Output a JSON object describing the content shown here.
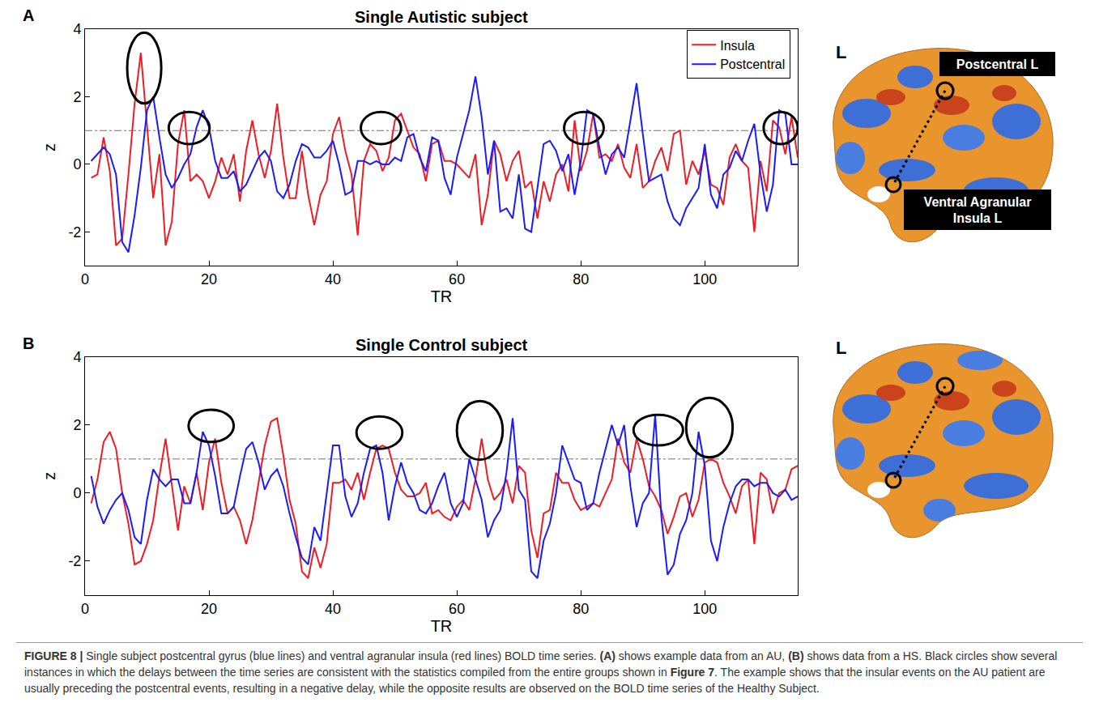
{
  "chart_data": [
    {
      "type": "line",
      "panel": "A",
      "title": "Single Autistic subject",
      "x_label": "TR",
      "y_label": "z",
      "x": [
        1,
        2,
        3,
        4,
        5,
        6,
        7,
        8,
        9,
        10,
        11,
        12,
        13,
        14,
        15,
        16,
        17,
        18,
        19,
        20,
        21,
        22,
        23,
        24,
        25,
        26,
        27,
        28,
        29,
        30,
        31,
        32,
        33,
        34,
        35,
        36,
        37,
        38,
        39,
        40,
        41,
        42,
        43,
        44,
        45,
        46,
        47,
        48,
        49,
        50,
        51,
        52,
        53,
        54,
        55,
        56,
        57,
        58,
        59,
        60,
        61,
        62,
        63,
        64,
        65,
        66,
        67,
        68,
        69,
        70,
        71,
        72,
        73,
        74,
        75,
        76,
        77,
        78,
        79,
        80,
        81,
        82,
        83,
        84,
        85,
        86,
        87,
        88,
        89,
        90,
        91,
        92,
        93,
        94,
        95,
        96,
        97,
        98,
        99,
        100,
        101,
        102,
        103,
        104,
        105,
        106,
        107,
        108,
        109,
        110,
        111,
        112,
        113,
        114,
        115
      ],
      "series": [
        {
          "name": "Insula",
          "color": "#ee1c25",
          "values": [
            -0.4,
            -0.3,
            0.8,
            -0.2,
            -2.4,
            -2.2,
            -0.3,
            1.8,
            3.3,
            1.2,
            -1.0,
            0.3,
            -2.4,
            -1.7,
            0.6,
            1.6,
            -0.5,
            -0.3,
            -0.5,
            -1.0,
            -0.5,
            0.2,
            -0.3,
            0.3,
            -1.1,
            0.4,
            1.3,
            0.3,
            -0.4,
            0.4,
            1.8,
            0.2,
            -1.0,
            -1.0,
            0.4,
            -0.9,
            -1.8,
            -0.9,
            -0.5,
            0.9,
            1.4,
            0.4,
            -0.3,
            -2.1,
            0.1,
            0.6,
            0.4,
            -0.2,
            0.2,
            1.3,
            1.5,
            1.0,
            0.5,
            0.3,
            -0.5,
            0.6,
            0.7,
            0.1,
            0.1,
            0.0,
            -0.2,
            -0.4,
            0.3,
            -1.8,
            -0.9,
            0.7,
            0.3,
            -0.5,
            0.1,
            0.4,
            -0.7,
            -0.5,
            -1.6,
            -0.5,
            -1.1,
            -0.3,
            0.0,
            -0.8,
            1.3,
            -0.2,
            0.4,
            1.5,
            0.2,
            0.3,
            0.1,
            0.6,
            -0.1,
            -0.4,
            0.6,
            -0.7,
            -0.5,
            0.1,
            0.5,
            -0.2,
            0.9,
            1.0,
            -0.6,
            0.1,
            -0.3,
            0.4,
            -0.6,
            -0.7,
            -1.2,
            0.2,
            0.6,
            0.1,
            -0.1,
            -2.0,
            0.1,
            -0.8,
            1.3,
            1.1,
            0.3,
            1.4,
            0.2
          ]
        },
        {
          "name": "Postcentral",
          "color": "#1a1aff",
          "values": [
            0.1,
            0.3,
            0.5,
            0.3,
            -0.3,
            -2.3,
            -2.6,
            -1.5,
            -0.1,
            1.6,
            2.0,
            0.8,
            -0.3,
            -0.7,
            -0.4,
            0.0,
            0.3,
            1.1,
            1.6,
            1.1,
            0.1,
            -0.4,
            -0.4,
            -0.2,
            -0.8,
            -0.6,
            -0.2,
            0.2,
            0.4,
            0.1,
            -0.8,
            -1.0,
            -0.6,
            0.1,
            0.6,
            0.5,
            0.2,
            0.2,
            0.4,
            0.7,
            0.0,
            -0.9,
            -0.8,
            0.1,
            0.1,
            0.0,
            0.1,
            0.0,
            0.0,
            0.2,
            0.1,
            0.8,
            0.9,
            0.2,
            -0.2,
            0.8,
            0.7,
            -0.4,
            -0.9,
            0.2,
            0.9,
            1.6,
            2.6,
            1.4,
            -0.3,
            0.7,
            -1.4,
            -1.3,
            -1.6,
            -0.3,
            -1.9,
            -2.0,
            -0.7,
            0.6,
            0.7,
            0.4,
            -0.2,
            0.3,
            -0.9,
            0.1,
            1.6,
            1.5,
            0.5,
            -0.3,
            0.3,
            0.5,
            0.2,
            1.3,
            2.4,
            0.9,
            -0.5,
            -0.4,
            -0.3,
            -1.1,
            -1.6,
            -1.8,
            -1.3,
            -1.0,
            -0.7,
            0.6,
            -0.9,
            -1.3,
            -0.3,
            -0.1,
            0.4,
            0.1,
            0.7,
            1.2,
            -0.3,
            -1.4,
            -0.6,
            1.6,
            1.5,
            0.0,
            0.0
          ]
        }
      ],
      "xlim": [
        0,
        115
      ],
      "xticks": [
        0,
        20,
        40,
        60,
        80,
        100
      ],
      "ylim": [
        -3,
        4
      ],
      "yticks": [
        -2,
        0,
        2,
        4
      ],
      "grid": false,
      "legend": "upper right",
      "reference_line": {
        "y": 1,
        "line_style": "dashdot"
      },
      "circles": [
        {
          "x": [
            6.8,
            12.3
          ],
          "y": [
            1.8,
            3.9
          ]
        },
        {
          "x": [
            13.5,
            20.1
          ],
          "y": [
            0.6,
            1.55
          ]
        },
        {
          "x": [
            44.5,
            51
          ],
          "y": [
            0.6,
            1.55
          ]
        },
        {
          "x": [
            77.3,
            83.7
          ],
          "y": [
            0.6,
            1.55
          ]
        },
        {
          "x": [
            109.5,
            115
          ],
          "y": [
            0.6,
            1.55
          ]
        }
      ]
    },
    {
      "type": "line",
      "panel": "B",
      "title": "Single Control subject",
      "x_label": "TR",
      "y_label": "z",
      "x": [
        1,
        2,
        3,
        4,
        5,
        6,
        7,
        8,
        9,
        10,
        11,
        12,
        13,
        14,
        15,
        16,
        17,
        18,
        19,
        20,
        21,
        22,
        23,
        24,
        25,
        26,
        27,
        28,
        29,
        30,
        31,
        32,
        33,
        34,
        35,
        36,
        37,
        38,
        39,
        40,
        41,
        42,
        43,
        44,
        45,
        46,
        47,
        48,
        49,
        50,
        51,
        52,
        53,
        54,
        55,
        56,
        57,
        58,
        59,
        60,
        61,
        62,
        63,
        64,
        65,
        66,
        67,
        68,
        69,
        70,
        71,
        72,
        73,
        74,
        75,
        76,
        77,
        78,
        79,
        80,
        81,
        82,
        83,
        84,
        85,
        86,
        87,
        88,
        89,
        90,
        91,
        92,
        93,
        94,
        95,
        96,
        97,
        98,
        99,
        100,
        101,
        102,
        103,
        104,
        105,
        106,
        107,
        108,
        109,
        110,
        111,
        112,
        113,
        114,
        115
      ],
      "series": [
        {
          "name": "Insula",
          "color": "#ee1c25",
          "values": [
            -0.3,
            0.4,
            1.5,
            1.8,
            1.3,
            0.0,
            -0.9,
            -2.1,
            -2.0,
            -1.5,
            -0.8,
            0.5,
            1.6,
            0.2,
            -1.1,
            0.2,
            -0.3,
            0.6,
            -0.5,
            0.9,
            1.6,
            0.3,
            -0.6,
            -0.4,
            -0.8,
            -1.5,
            -0.8,
            0.3,
            1.4,
            2.1,
            2.2,
            1.1,
            -0.2,
            -0.9,
            -2.3,
            -2.5,
            -1.6,
            -2.2,
            -1.5,
            0.3,
            0.3,
            0.4,
            0.1,
            0.6,
            -0.2,
            0.6,
            1.3,
            1.4,
            1.3,
            0.6,
            0.1,
            -0.1,
            -0.1,
            0.0,
            0.3,
            -0.6,
            -0.5,
            -0.7,
            -0.8,
            -0.4,
            -0.2,
            -0.5,
            0.4,
            1.6,
            0.4,
            -0.2,
            0.0,
            0.4,
            -0.3,
            0.8,
            0.6,
            -1.1,
            -1.9,
            -0.6,
            -0.5,
            0.6,
            0.3,
            0.3,
            -0.2,
            -0.5,
            -0.4,
            -0.3,
            -0.4,
            0.0,
            0.4,
            1.6,
            0.9,
            0.6,
            1.6,
            1.0,
            0.2,
            -0.1,
            -0.5,
            -1.2,
            -0.7,
            -0.1,
            0.0,
            -0.7,
            -0.2,
            0.9,
            1.0,
            0.9,
            0.3,
            -0.1,
            -0.6,
            0.2,
            0.4,
            -1.5,
            0.6,
            0.4,
            -0.6,
            0.0,
            0.1,
            0.7,
            0.8
          ]
        },
        {
          "name": "Postcentral",
          "color": "#1a1aff",
          "values": [
            0.5,
            -0.4,
            -0.9,
            -0.5,
            -0.2,
            0.0,
            -0.5,
            -1.3,
            -1.5,
            -0.2,
            0.7,
            0.4,
            0.2,
            0.4,
            0.4,
            -0.3,
            -0.3,
            0.6,
            1.8,
            1.4,
            0.5,
            -0.6,
            -0.6,
            -0.4,
            0.5,
            1.3,
            1.5,
            0.9,
            0.1,
            0.5,
            0.7,
            0.2,
            -0.6,
            -1.3,
            -1.9,
            -2.1,
            -1.0,
            -1.4,
            0.0,
            1.4,
            1.4,
            -0.1,
            -0.7,
            -0.3,
            0.6,
            1.3,
            1.4,
            0.6,
            -0.8,
            0.2,
            0.9,
            0.3,
            0.0,
            -0.5,
            -0.6,
            -0.3,
            0.2,
            0.6,
            -0.3,
            -0.7,
            -0.3,
            1.0,
            0.4,
            -0.2,
            -1.3,
            -0.8,
            -0.5,
            0.6,
            2.2,
            0.1,
            -0.2,
            -2.3,
            -2.5,
            -1.4,
            -0.9,
            0.0,
            1.4,
            0.9,
            0.4,
            0.3,
            -0.5,
            -0.3,
            0.6,
            1.3,
            2.0,
            1.4,
            2.0,
            0.2,
            -1.0,
            -0.3,
            0.0,
            2.3,
            -0.7,
            -2.4,
            -2.1,
            -1.2,
            -0.8,
            0.0,
            1.8,
            0.8,
            -1.4,
            -2.0,
            -1.0,
            -0.3,
            0.2,
            0.4,
            0.4,
            0.2,
            0.3,
            0.3,
            0.0,
            -0.1,
            0.1,
            -0.2,
            -0.1
          ]
        }
      ],
      "xlim": [
        0,
        115
      ],
      "xticks": [
        0,
        20,
        40,
        60,
        80,
        100
      ],
      "ylim": [
        -3,
        4
      ],
      "yticks": [
        -2,
        0,
        2,
        4
      ],
      "grid": false,
      "reference_line": {
        "y": 1,
        "line_style": "dashdot"
      },
      "circles": [
        {
          "x": [
            16.7,
            24
          ],
          "y": [
            1.5,
            2.45
          ]
        },
        {
          "x": [
            43.8,
            51.2
          ],
          "y": [
            1.3,
            2.25
          ]
        },
        {
          "x": [
            60,
            67.4
          ],
          "y": [
            0.98,
            2.7
          ]
        },
        {
          "x": [
            88.5,
            96.5
          ],
          "y": [
            1.4,
            2.3
          ]
        },
        {
          "x": [
            97,
            104.5
          ],
          "y": [
            1.05,
            2.8
          ]
        }
      ]
    }
  ],
  "brain_panels": [
    {
      "hemisphere": "L",
      "regions": [
        "Postcentral L",
        "Ventral Agranular Insula L"
      ]
    },
    {
      "hemisphere": "L"
    }
  ],
  "caption": [
    {
      "text": "FIGURE 8 |",
      "bold": true
    },
    {
      "text": " Single subject postcentral gyrus (blue lines) and ventral agranular insula (red lines) BOLD time series. ",
      "bold": false
    },
    {
      "text": "(A)",
      "bold": true
    },
    {
      "text": " shows example data from an AU, ",
      "bold": false
    },
    {
      "text": "(B)",
      "bold": true
    },
    {
      "text": " shows data from a HS. Black circles show several instances in which the delays between the time series are consistent with the statistics compiled from the entire groups shown in ",
      "bold": false
    },
    {
      "text": "Figure 7",
      "bold": true
    },
    {
      "text": ". The example shows that the insular events on the AU patient are usually preceding the postcentral events, resulting in a negative delay, while the opposite results are observed on the BOLD time series of the Healthy Subject.",
      "bold": false
    }
  ]
}
